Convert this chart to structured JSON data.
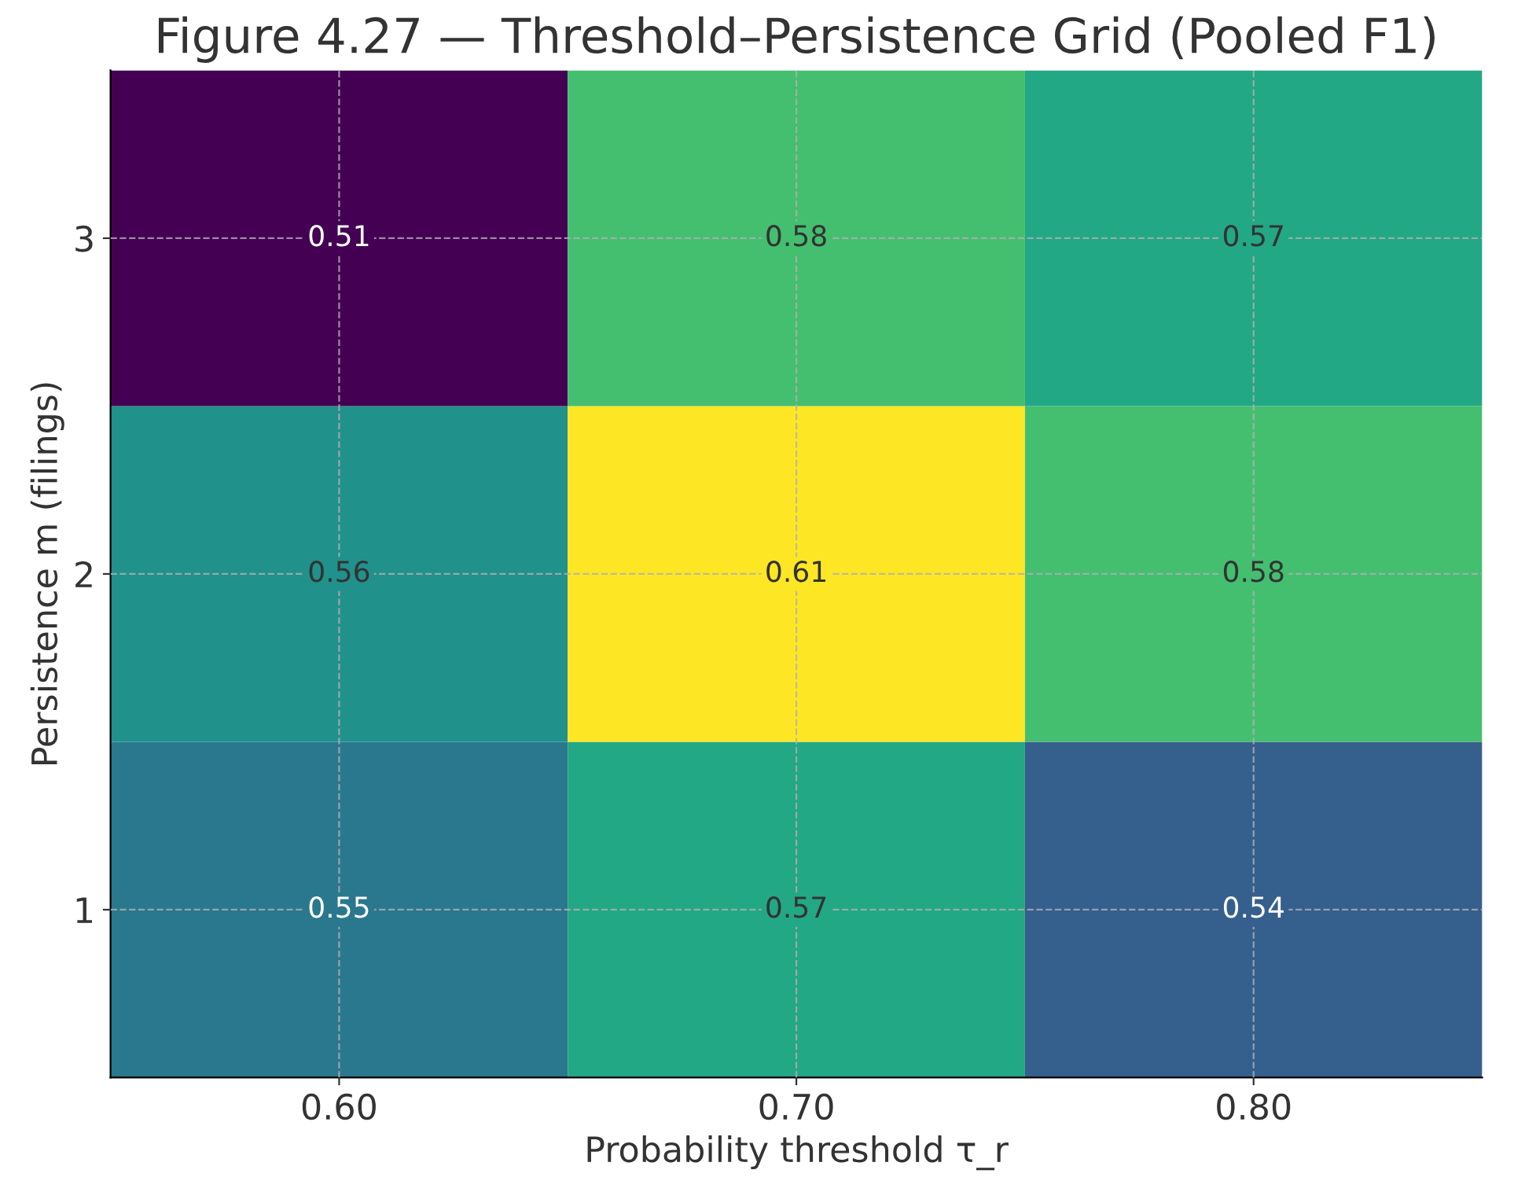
{
  "chart_data": {
    "type": "heatmap",
    "title": "Figure 4.27 — Threshold–Persistence Grid (Pooled F1)",
    "xlabel": "Probability threshold τ_r",
    "ylabel": "Persistence m (filings)",
    "categories": [
      "0.60",
      "0.70",
      "0.80"
    ],
    "y_categories": [
      "3",
      "2",
      "1"
    ],
    "cells": [
      [
        0.51,
        0.58,
        0.57
      ],
      [
        0.56,
        0.61,
        0.58
      ],
      [
        0.55,
        0.57,
        0.54
      ]
    ],
    "data_labels": true,
    "grid": true
  }
}
